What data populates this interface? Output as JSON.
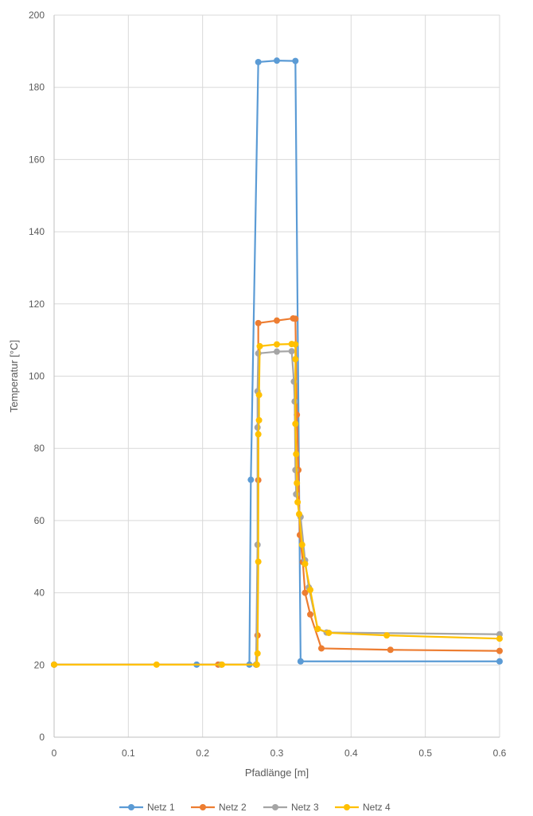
{
  "chart_data": {
    "type": "scatter",
    "title": "",
    "xlabel": "Pfadlänge [m]",
    "ylabel": "Temperatur [°C]",
    "xlim": [
      0,
      0.6
    ],
    "ylim": [
      0,
      200
    ],
    "x_ticks": [
      0,
      0.1,
      0.2,
      0.3,
      0.4,
      0.5,
      0.6
    ],
    "x_tick_labels": [
      "0",
      "0.1",
      "0.2",
      "0.3",
      "0.4",
      "0.5",
      "0.6"
    ],
    "y_ticks": [
      0,
      20,
      40,
      60,
      80,
      100,
      120,
      140,
      160,
      180,
      200
    ],
    "y_tick_labels": [
      "0",
      "20",
      "40",
      "60",
      "80",
      "100",
      "120",
      "140",
      "160",
      "180",
      "200"
    ],
    "grid": true,
    "legend": "bottom",
    "series": [
      {
        "name": "Netz 1",
        "color": "#5B9BD5",
        "points": [
          [
            0,
            20.1
          ],
          [
            0.192,
            20.1
          ],
          [
            0.263,
            20.1
          ],
          [
            0.265,
            71.3
          ],
          [
            0.275,
            187
          ],
          [
            0.3,
            187.4
          ],
          [
            0.325,
            187.3
          ],
          [
            0.332,
            21
          ],
          [
            0.6,
            21
          ]
        ]
      },
      {
        "name": "Netz 2",
        "color": "#ED7D31",
        "points": [
          [
            0,
            20.1
          ],
          [
            0.221,
            20.1
          ],
          [
            0.272,
            20.1
          ],
          [
            0.274,
            28.2
          ],
          [
            0.275,
            71.2
          ],
          [
            0.275,
            114.7
          ],
          [
            0.3,
            115.4
          ],
          [
            0.322,
            116
          ],
          [
            0.325,
            115.9
          ],
          [
            0.327,
            89.3
          ],
          [
            0.329,
            74
          ],
          [
            0.331,
            56
          ],
          [
            0.335,
            48.5
          ],
          [
            0.338,
            40
          ],
          [
            0.345,
            34
          ],
          [
            0.36,
            24.6
          ],
          [
            0.453,
            24.2
          ],
          [
            0.6,
            23.9
          ]
        ]
      },
      {
        "name": "Netz 3",
        "color": "#A5A5A5",
        "points": [
          [
            0,
            20.1
          ],
          [
            0.225,
            20.1
          ],
          [
            0.272,
            20.1
          ],
          [
            0.274,
            53.3
          ],
          [
            0.274,
            85.8
          ],
          [
            0.274,
            95.8
          ],
          [
            0.275,
            106.3
          ],
          [
            0.3,
            106.8
          ],
          [
            0.32,
            106.9
          ],
          [
            0.323,
            98.5
          ],
          [
            0.324,
            93
          ],
          [
            0.325,
            74
          ],
          [
            0.326,
            67.3
          ],
          [
            0.332,
            61
          ],
          [
            0.338,
            49
          ],
          [
            0.343,
            41.5
          ],
          [
            0.355,
            30
          ],
          [
            0.367,
            29
          ],
          [
            0.6,
            28.5
          ]
        ]
      },
      {
        "name": "Netz 4",
        "color": "#FFC000",
        "points": [
          [
            0,
            20.1
          ],
          [
            0.138,
            20.1
          ],
          [
            0.226,
            20.1
          ],
          [
            0.273,
            20.1
          ],
          [
            0.274,
            23.2
          ],
          [
            0.275,
            48.6
          ],
          [
            0.275,
            83.9
          ],
          [
            0.276,
            87.8
          ],
          [
            0.276,
            94.8
          ],
          [
            0.277,
            108.3
          ],
          [
            0.3,
            108.8
          ],
          [
            0.32,
            108.9
          ],
          [
            0.325,
            108.8
          ],
          [
            0.325,
            104.7
          ],
          [
            0.325,
            86.8
          ],
          [
            0.326,
            78.4
          ],
          [
            0.327,
            70.4
          ],
          [
            0.328,
            65.1
          ],
          [
            0.33,
            61.8
          ],
          [
            0.334,
            53.3
          ],
          [
            0.338,
            48
          ],
          [
            0.345,
            40.8
          ],
          [
            0.355,
            30
          ],
          [
            0.37,
            28.9
          ],
          [
            0.448,
            28.2
          ],
          [
            0.6,
            27.3
          ]
        ]
      }
    ]
  }
}
